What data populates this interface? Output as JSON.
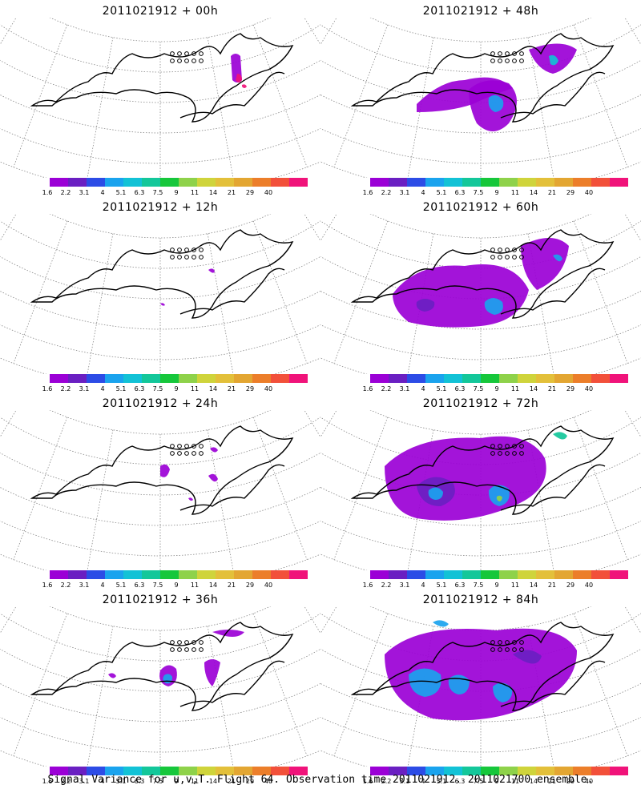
{
  "panels": [
    {
      "title": "2011021912 + 00h",
      "map": "map-00h"
    },
    {
      "title": "2011021912 + 48h",
      "map": "map-48h"
    },
    {
      "title": "2011021912 + 12h",
      "map": "map-12h"
    },
    {
      "title": "2011021912 + 60h",
      "map": "map-60h"
    },
    {
      "title": "2011021912 + 24h",
      "map": "map-24h"
    },
    {
      "title": "2011021912 + 72h",
      "map": "map-72h"
    },
    {
      "title": "2011021912 + 36h",
      "map": "map-36h"
    },
    {
      "title": "2011021912 + 84h",
      "map": "map-84h"
    }
  ],
  "colorbar": {
    "colors": [
      "#9b00d6",
      "#6a1fc2",
      "#2c4ce6",
      "#1aa3ee",
      "#12c2d6",
      "#13c79a",
      "#16c73b",
      "#8ed24a",
      "#cfd43b",
      "#e3c03a",
      "#e3a632",
      "#ec7e2a",
      "#f2503a",
      "#f0137a"
    ],
    "tick_labels": [
      "1.6",
      "2.2",
      "3.1",
      "4",
      "5.1",
      "6.3",
      "7.5",
      "9",
      "11",
      "14",
      "21",
      "29",
      "40"
    ]
  },
  "footer": "Signal Variance for u,v,T. Flight 64. Observation time 2011021912. 2011021700 ensemble."
}
